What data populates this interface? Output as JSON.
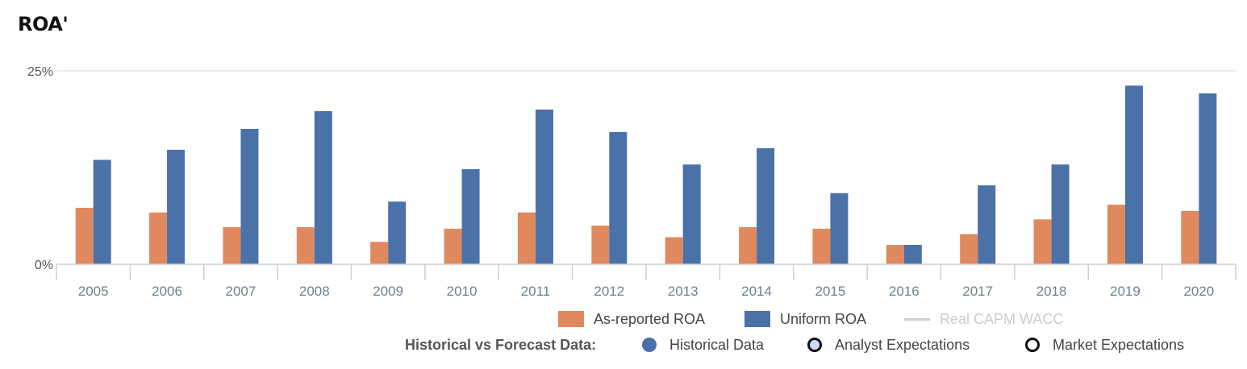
{
  "title": "ROA'",
  "chart_data": {
    "type": "bar",
    "categories": [
      "2005",
      "2006",
      "2007",
      "2008",
      "2009",
      "2010",
      "2011",
      "2012",
      "2013",
      "2014",
      "2015",
      "2016",
      "2017",
      "2018",
      "2019",
      "2020"
    ],
    "series": [
      {
        "name": "As-reported ROA",
        "color": "#e0895e",
        "values": [
          7.3,
          6.7,
          4.8,
          4.8,
          2.9,
          4.6,
          6.7,
          5.0,
          3.5,
          4.8,
          4.6,
          2.5,
          3.9,
          5.8,
          7.7,
          6.9
        ]
      },
      {
        "name": "Uniform ROA",
        "color": "#4a72a8",
        "values": [
          13.5,
          14.8,
          17.5,
          19.8,
          8.1,
          12.3,
          20.0,
          17.1,
          12.9,
          15.0,
          9.2,
          2.5,
          10.2,
          12.9,
          23.1,
          22.1
        ]
      }
    ],
    "yticks": [
      "0%",
      "25%"
    ],
    "ylim": [
      0,
      25
    ],
    "grid": true,
    "legend_position": "bottom-right"
  },
  "legend": {
    "items": [
      {
        "label": "As-reported ROA",
        "color": "#e0895e"
      },
      {
        "label": "Uniform ROA",
        "color": "#4a72a8"
      },
      {
        "label": "Real CAPM WACC",
        "color": "#cccccc"
      }
    ]
  },
  "forecast_legend": {
    "title": "Historical vs Forecast Data:",
    "items": [
      {
        "label": "Historical Data",
        "fill": "#4a72a8",
        "border": "#4a72a8"
      },
      {
        "label": "Analyst Expectations",
        "fill": "#c9ddf2",
        "border": "#111111"
      },
      {
        "label": "Market Expectations",
        "fill": "#ffffff",
        "border": "#111111"
      }
    ]
  }
}
